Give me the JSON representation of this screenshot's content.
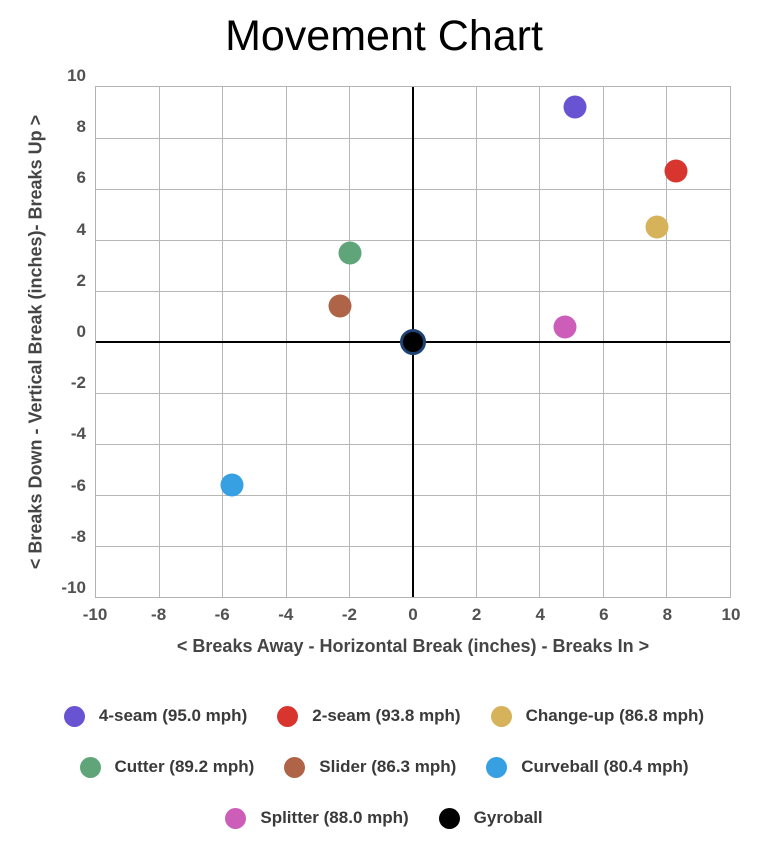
{
  "title": "Movement Chart",
  "chart_data": {
    "type": "scatter",
    "title": "Movement Chart",
    "xlabel": "< Breaks Away - Horizontal Break (inches) - Breaks In >",
    "ylabel": "< Breaks Down - Vertical Break (inches)- Breaks Up >",
    "xlim": [
      -10,
      10
    ],
    "ylim": [
      -10,
      10
    ],
    "x_ticks": [
      -10,
      -8,
      -6,
      -4,
      -2,
      0,
      2,
      4,
      6,
      8,
      10
    ],
    "y_ticks": [
      10,
      8,
      6,
      4,
      2,
      0,
      -2,
      -4,
      -6,
      -8,
      -10
    ],
    "grid": true,
    "legend_position": "bottom",
    "series": [
      {
        "name": "4-seam",
        "label": "4-seam (95.0 mph)",
        "speed_mph": 95.0,
        "color": "#6854d2",
        "x": 5.1,
        "y": 9.2
      },
      {
        "name": "2-seam",
        "label": "2-seam (93.8 mph)",
        "speed_mph": 93.8,
        "color": "#d8352f",
        "x": 8.3,
        "y": 6.7
      },
      {
        "name": "Change-up",
        "label": "Change-up (86.8 mph)",
        "speed_mph": 86.8,
        "color": "#d6b35a",
        "x": 7.7,
        "y": 4.5
      },
      {
        "name": "Cutter",
        "label": "Cutter (89.2 mph)",
        "speed_mph": 89.2,
        "color": "#60a57a",
        "x": -2.0,
        "y": 3.5
      },
      {
        "name": "Slider",
        "label": "Slider (86.3 mph)",
        "speed_mph": 86.3,
        "color": "#af6347",
        "x": -2.3,
        "y": 1.4
      },
      {
        "name": "Curveball",
        "label": "Curveball (80.4 mph)",
        "speed_mph": 80.4,
        "color": "#36a0e3",
        "x": -5.7,
        "y": -5.6
      },
      {
        "name": "Splitter",
        "label": "Splitter (88.0 mph)",
        "speed_mph": 88.0,
        "color": "#cc5db9",
        "x": 4.8,
        "y": 0.6
      },
      {
        "name": "Gyroball",
        "label": "Gyroball",
        "color": "#000000",
        "ring_color": "#1d4273",
        "x": 0,
        "y": 0
      }
    ],
    "legend_rows": [
      [
        0,
        1,
        2
      ],
      [
        3,
        4,
        5
      ],
      [
        6,
        7
      ]
    ]
  },
  "colors": {
    "background": "#ffffff",
    "gridline": "#b7b7b7",
    "axis_line": "#000000",
    "tick_text": "#515151",
    "axis_title_text": "#454545",
    "legend_text": "#3a3a3a",
    "title_text": "#000000"
  }
}
